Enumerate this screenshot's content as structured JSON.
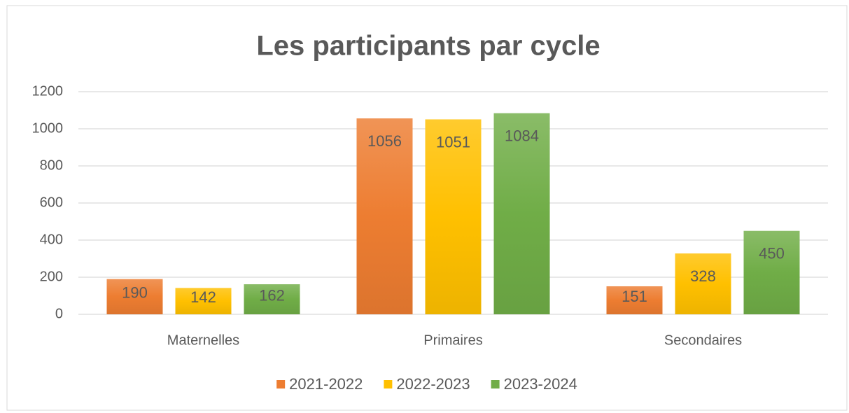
{
  "chart_data": {
    "type": "bar",
    "title": "Les participants par cycle",
    "categories": [
      "Maternelles",
      "Primaires",
      "Secondaires"
    ],
    "series": [
      {
        "name": "2021-2022",
        "color": "#ed7d31",
        "values": [
          190,
          1056,
          151
        ]
      },
      {
        "name": "2022-2023",
        "color": "#ffc000",
        "values": [
          142,
          1051,
          328
        ]
      },
      {
        "name": "2023-2024",
        "color": "#70ad47",
        "values": [
          162,
          1084,
          450
        ]
      }
    ],
    "ylim": [
      0,
      1200
    ],
    "yticks": [
      0,
      200,
      400,
      600,
      800,
      1000,
      1200
    ],
    "grid": true,
    "legend": "bottom"
  }
}
